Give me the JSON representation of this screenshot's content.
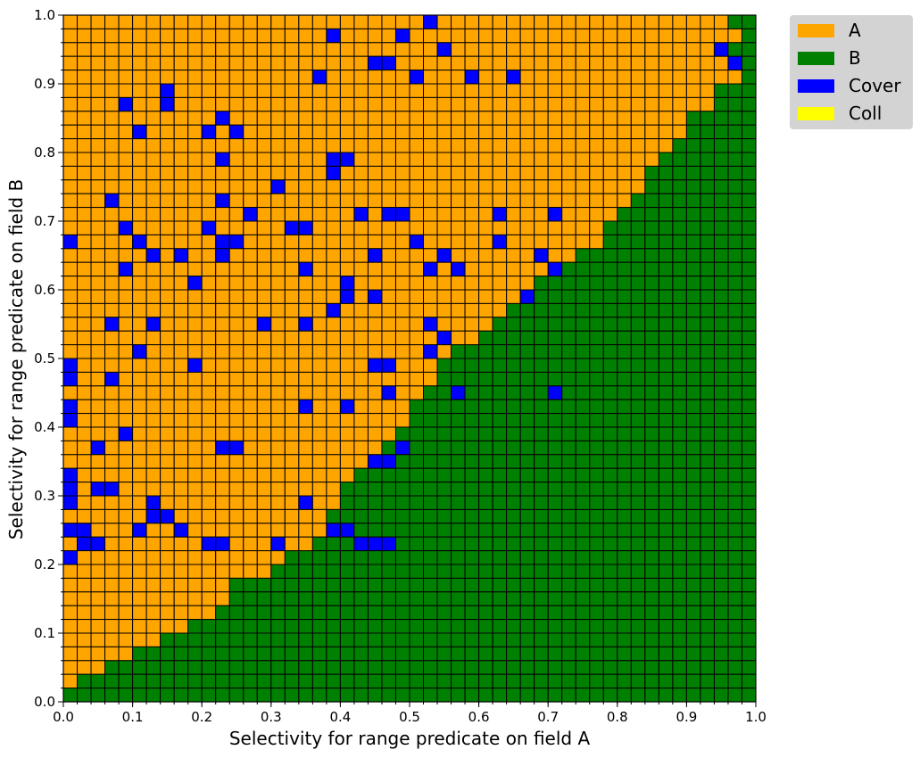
{
  "chart_data": {
    "type": "heatmap",
    "title": "",
    "xlabel": "Selectivity for range predicate on field A",
    "ylabel": "Selectivity for range predicate on field B",
    "xlim": [
      0.0,
      1.0
    ],
    "ylim": [
      0.0,
      1.0
    ],
    "grid": true,
    "grid_size": 50,
    "cell_edge_color": "#000000",
    "x_ticks": [
      "0.0",
      "0.1",
      "0.2",
      "0.3",
      "0.4",
      "0.5",
      "0.6",
      "0.7",
      "0.8",
      "0.9",
      "1.0"
    ],
    "y_ticks": [
      "0.0",
      "0.1",
      "0.2",
      "0.3",
      "0.4",
      "0.5",
      "0.6",
      "0.7",
      "0.8",
      "0.9",
      "1.0"
    ],
    "legend_position": "outside top-right",
    "categories": [
      {
        "code": "A",
        "label": "A",
        "color": "#FFA500"
      },
      {
        "code": "B",
        "label": "B",
        "color": "#008000"
      },
      {
        "code": "C",
        "label": "Cover",
        "color": "#0000FF"
      },
      {
        "code": "L",
        "label": "Coll",
        "color": "#FFFF00"
      }
    ],
    "rows": [
      "AAAAAAAAAAAAAAAAAAAAAAAAAAAAAAAAAAAAAAAAAAAAAAAAB",
      "AAAAAAAAAAAAAAAAAAAAAAAAAAAAAAAAAAAAAAAAAAAAAAAAABAB",
      "AAAAAAAAAAAAAAAAAAAAAAAAAAAAAAAAAAAAAAAAAAAAAAACBB",
      "AAAAAAAAAAAAAAAAAAAAAAAAAAAAAAAAAAAAAAAAAAAAAAAACBBB",
      "AAAAAAAAAAAAAAAAAAAAAAAAAAAAAAAAAAAAAAAAAAAAAAAAABBB",
      "AAAAAAAAAAAAAAAAAAAAAAAAAAAAAAAAAAAAAAAAAAAAAAABBBBB",
      "AAAAAAAAAAAAAAAAAAAAAAAAAAAAAAAAAAAAAAAAAAAAAAABBBBB",
      "AAAAAAAAAAAAAAAAAAAAAAAAAAAAAAAAAAAAAAAAAAAAABBBBBBB",
      "AAAAAAAAAAAAAAAAAAAAAAAAAAAAAAAAAAAAAAAAAAAAABBBBBBB",
      "AAAAAAAAAAAAAAAAAAAAAAAAAAAAAAAAAAAAAAAAAAAABBBBBBBB",
      "AAAAAAAAAAAAAAAAAAAAAAAAAAAAAAAAAAAAAAAAAAABBBBBBBBB",
      "AAAAAAAAAAAAAAAAAAAAAAAAAAAAAAAAAAAAAAAAAABBBBBBBBBB",
      "AAAAAAAAAAAAAAAAAAAAAAAAAAAAAAAAAAAAAAAAAABBBBBBBBBB",
      "AAAAAAAAAAAAAAAAAAAAAAAAAAAAAAAAAAAAAAAAABBBBBBBBBBB",
      "AAAAAAAAAAAAAAAAAAAAAAAAAAAAAAAAAAAAAAAABBBBBBBBBBBB",
      "AAAAAAAAAAAAAAAAAAAAAAAAAAAAAAAAAAAAAAABBBBBBBBBBBBB",
      "AAAAAAAAAAAAAAAAAAAAAAAAAAAAAAAAAAAAAAABBBBBBBBBBBBB",
      "AAAAAAAAAAAAAAAAAAAAAAAAAAAAAAAAAAAAABBBBBBBBBBBBBBB",
      "AAAAAAAAAAAAAAAAAAAAAAAAAAAAAAAAAAAABBBBBBBBBBBBBBBB",
      "AAAAAAAAAAAAAAAAAAAAAAAAAAAAAAAAAABBBBBBBBBBBBBBBBBB",
      "AAAAAAAAAAAAAAAAAAAAAAAAAAAAAAAAABBBBBBBBBBBBBBBBBBB",
      "AAAAAAAAAAAAAAAAAAAAAAAAAAAAAAAABBBBBBBBBBBBBBBBBBBB",
      "AAAAAAAAAAAAAAAAAAAAAAAAAAAAAAABBBBBBBBBBBBBBBBBBBBB",
      "AAAAAAAAAAAAAAAAAAAAAAAAAAAAAABBBBBBBBBBBBBBBBBBBBBB",
      "AAAAAAAAAAAAAAAAAAAAAAAAAAAABBBBBBBBBBBBBBBBBBBBBBBB",
      "AAAAAAAAAAAAAAAAAAAAAAAAAAABBBBBBBBBBBBBBBBBBBBBBBBB",
      "AAAAAAAAAAAAAAAAAAAAAAAAAAABBBBBBBBBBBBBBBBBBBBBBBBB",
      "AAAAAAAAAAAAAAAAAAAAAAAAAABBBBBBBBBBBBBBBBBBBBBBBBBB",
      "AAAAAAAAAAAAAAAAAAAAAAAAABBBBBBBBBBBBBBBBBBBBBBBBBBB",
      "AAAAAAAAAAAAAAAAAAAAAAAAABBBBBBBBBBBBBBBBBBBBBBBBBBB",
      "AAAAAAAAAAAAAAAAAAAAAAAABBBBBBBBBBBBBBBBBBBBBBBBBBBB",
      "AAAAAAAAAAAAAAAAAAAAAAABBBBBBBBBBBBBBBBBBBBBBBBBBBBB",
      "AAAAAAAAAAAAAAAAAAAAAAABBBBBBBBBBBBBBBBBBBBBBBBBBBBB",
      "AAAAAAAAAAAAAAAAAAAAABBBBBBBBBBBBBBBBBBBBBBBBBBBBBBB",
      "AAAAAAAAAAAAAAAAAAAABBBBBBBBBBBBBBBBBBBBBBBBBBBBBBBB",
      "AAAAAAAAAAAAAAAAAAAABBBBBBBBBBBBBBBBBBBBBBBBBBBBBBBB",
      "AAAAAAAAAAAAAAAAAAABBBBBBBBBBBBBBBBBBBBBBBBBBBBBBBBB",
      "AAAAAAAAAAAAAAAAAAABBBBBBBBBBBBBBBBBBBBBBBBBBBBBBBBB",
      "AAAAAAAAAAAAAAAAAABBBBBBBBBBBBBBBBBBBBBBBBBBBBBBBBBB",
      "AAAAAAAAAAAAAAAABBBBBBBBBBBBBBBBBBBBBBBBBBBBBBBBBBBB",
      "AAAAAAAAAAAAAAABBBBBBBBBBBBBBBBBBBBBBBBBBBBBBBBBBBBB",
      "AAAAAAAAAAAABBBBBBBBBBBBBBBBBBBBBBBBBBBBBBBBBBBBBBBB",
      "AAAAAAAAAAAABBBBBBBBBBBBBBBBBBBBBBBBBBBBBBBBBBBBBBBB",
      "AAAAAAAAAAABBBBBBBBBBBBBBBBBBBBBBBBBBBBBBBBBBBBBBBBB",
      "AAAAAAAAABBBBBBBBBBBBBBBBBBBBBBBBBBBBBBBBBBBBBBBBBBB",
      "AAAAAAABBBBBBBBBBBBBBBBBBBBBBBBBBBBBBBBBBBBBBBBBBBBB",
      "AAAAABBBBBBBBBBBBBBBBBBBBBBBBBBBBBBBBBBBBBBBBBBBBBBB",
      "AAABBBBBBBBBBBBBBBBBBBBBBBBBBBBBBBBBBBBBBBBBBBBBBBBB",
      "ABBBBBBBBBBBBBBBBBBBBBBBBBBBBBBBBBBBBBBBBBBBBBBBBBBB",
      "BBBBBBBBBBBBBBBBBBBBBBBBBBBBBBBBBBBBBBBBBBBBBBBBBBBB"
    ],
    "cover_cells": [
      [
        19,
        1
      ],
      [
        24,
        1
      ],
      [
        26,
        0
      ],
      [
        27,
        2
      ],
      [
        23,
        3
      ],
      [
        22,
        3
      ],
      [
        29,
        4
      ],
      [
        25,
        4
      ],
      [
        18,
        4
      ],
      [
        32,
        4
      ],
      [
        7,
        5
      ],
      [
        7,
        6
      ],
      [
        4,
        6
      ],
      [
        11,
        7
      ],
      [
        10,
        8
      ],
      [
        5,
        8
      ],
      [
        12,
        8
      ],
      [
        11,
        10
      ],
      [
        19,
        10
      ],
      [
        20,
        10
      ],
      [
        19,
        11
      ],
      [
        15,
        12
      ],
      [
        3,
        13
      ],
      [
        11,
        13
      ],
      [
        21,
        14
      ],
      [
        23,
        14
      ],
      [
        24,
        14
      ],
      [
        13,
        14
      ],
      [
        31,
        14
      ],
      [
        35,
        14
      ],
      [
        4,
        15
      ],
      [
        10,
        15
      ],
      [
        16,
        15
      ],
      [
        17,
        15
      ],
      [
        11,
        16
      ],
      [
        12,
        16
      ],
      [
        5,
        16
      ],
      [
        25,
        16
      ],
      [
        31,
        16
      ],
      [
        0,
        16
      ],
      [
        8,
        17
      ],
      [
        6,
        17
      ],
      [
        11,
        17
      ],
      [
        34,
        17
      ],
      [
        27,
        17
      ],
      [
        22,
        17
      ],
      [
        4,
        18
      ],
      [
        17,
        18
      ],
      [
        26,
        18
      ],
      [
        35,
        18
      ],
      [
        28,
        18
      ],
      [
        9,
        19
      ],
      [
        20,
        19
      ],
      [
        20,
        20
      ],
      [
        33,
        20
      ],
      [
        22,
        20
      ],
      [
        19,
        21
      ],
      [
        3,
        22
      ],
      [
        3,
        22
      ],
      [
        6,
        22
      ],
      [
        17,
        22
      ],
      [
        27,
        23
      ],
      [
        14,
        22
      ],
      [
        26,
        22
      ],
      [
        5,
        24
      ],
      [
        0,
        25
      ],
      [
        26,
        24
      ],
      [
        22,
        25
      ],
      [
        23,
        25
      ],
      [
        9,
        25
      ],
      [
        0,
        26
      ],
      [
        3,
        26
      ],
      [
        23,
        27
      ],
      [
        17,
        28
      ],
      [
        20,
        28
      ],
      [
        28,
        27
      ],
      [
        35,
        27
      ],
      [
        0,
        28
      ],
      [
        0,
        29
      ],
      [
        4,
        30
      ],
      [
        2,
        31
      ],
      [
        12,
        31
      ],
      [
        11,
        31
      ],
      [
        24,
        31
      ],
      [
        22,
        32
      ],
      [
        23,
        32
      ],
      [
        0,
        33
      ],
      [
        0,
        34
      ],
      [
        2,
        34
      ],
      [
        3,
        34
      ],
      [
        0,
        35
      ],
      [
        6,
        35
      ],
      [
        17,
        35
      ],
      [
        6,
        36
      ],
      [
        7,
        36
      ],
      [
        0,
        37
      ],
      [
        1,
        37
      ],
      [
        5,
        37
      ],
      [
        8,
        37
      ],
      [
        19,
        37
      ],
      [
        20,
        37
      ],
      [
        1,
        38
      ],
      [
        2,
        38
      ],
      [
        10,
        38
      ],
      [
        11,
        38
      ],
      [
        15,
        38
      ],
      [
        21,
        38
      ],
      [
        22,
        38
      ],
      [
        23,
        38
      ],
      [
        0,
        39
      ]
    ]
  }
}
